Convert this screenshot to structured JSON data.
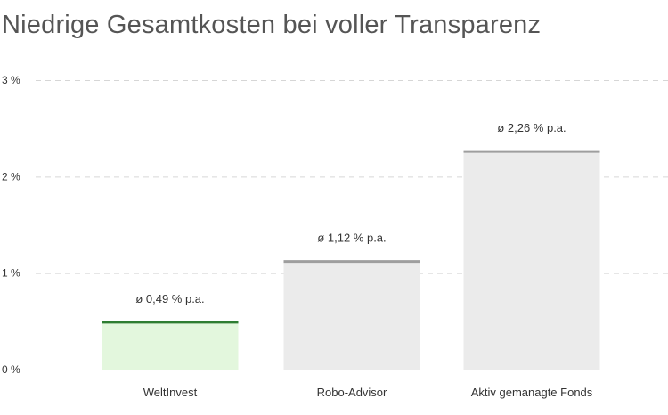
{
  "chart_data": {
    "type": "bar",
    "title": "Niedrige Gesamtkosten bei voller Transparenz",
    "xlabel": "",
    "ylabel": "",
    "categories": [
      "WeltInvest",
      "Robo-Advisor",
      "Aktiv gemanagte Fonds"
    ],
    "values": [
      0.49,
      1.12,
      2.26
    ],
    "data_labels": [
      "ø 0,49 % p.a.",
      "ø 1,12 % p.a.",
      "ø 2,26 % p.a."
    ],
    "ylim": [
      0,
      3
    ],
    "y_ticks": [
      {
        "value": 0,
        "label": "0 %"
      },
      {
        "value": 1,
        "label": "1 %"
      },
      {
        "value": 2,
        "label": "2 %"
      },
      {
        "value": 3,
        "label": "3 %"
      }
    ],
    "grid": true,
    "legend": "none",
    "colors": {
      "highlight_fill": "#e3f7dd",
      "highlight_line": "#2e7d32",
      "bar_fill": "#ebebeb",
      "bar_line": "#9e9e9e"
    }
  }
}
